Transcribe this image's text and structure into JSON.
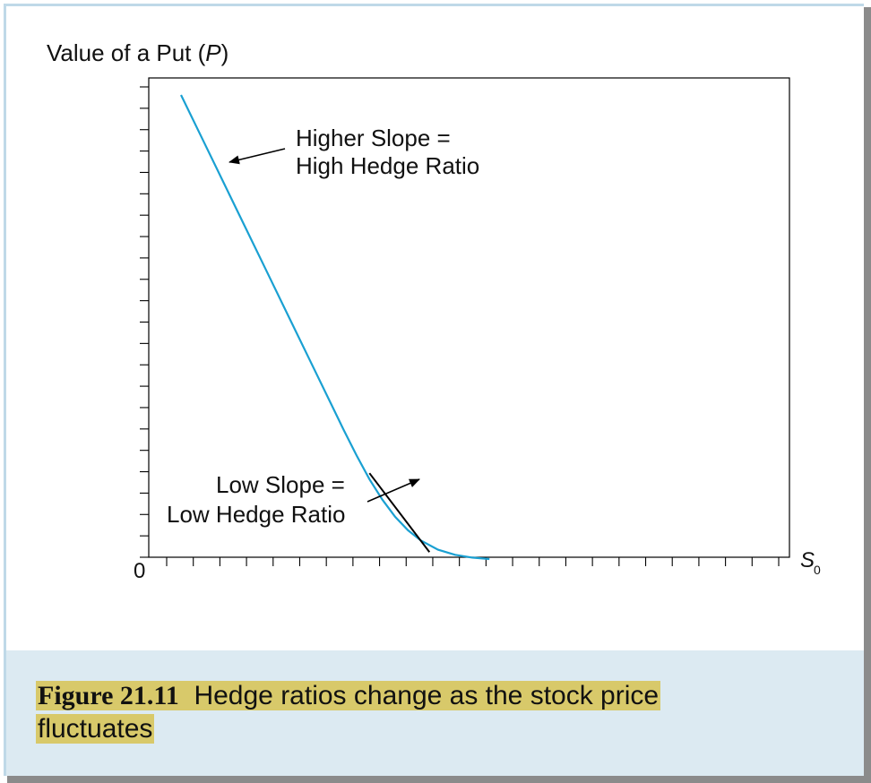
{
  "figure": {
    "label": "Figure 21.11",
    "caption": "Hedge ratios change as the stock price fluctuates"
  },
  "chart_data": {
    "type": "line",
    "title": "",
    "ylabel_prefix": "Value of a Put (",
    "ylabel_symbol": "P",
    "ylabel_suffix": ")",
    "xlabel_symbol": "S",
    "xlabel_subscript": "0",
    "origin_label": "0",
    "xlim": [
      0,
      100
    ],
    "ylim": [
      0,
      100
    ],
    "grid": false,
    "colors": {
      "curve": "#1aa0d2",
      "tangent": "#000000",
      "axis": "#000000"
    },
    "series": [
      {
        "values_x": [
          0,
          5,
          10,
          15,
          20,
          25,
          30,
          35,
          38,
          41,
          44,
          47,
          50,
          53,
          56,
          60,
          64,
          68,
          72
        ],
        "values_y": [
          100,
          90.5,
          81,
          71.5,
          62,
          52.5,
          43,
          33.5,
          27.8,
          22.3,
          17.2,
          12.8,
          9.1,
          6.2,
          4.0,
          2.0,
          0.9,
          0.3,
          0
        ]
      }
    ],
    "tangent_line": {
      "x": [
        44,
        58
      ],
      "y": [
        18.5,
        1.5
      ]
    },
    "annotations": [
      {
        "text_line1": "Higher Slope =",
        "text_line2": "High Hedge Ratio",
        "target": [
          8.5,
          84.2
        ]
      },
      {
        "text_line1": "Low Slope =",
        "text_line2": "Low Hedge Ratio",
        "target": [
          45,
          13.5
        ]
      }
    ]
  }
}
